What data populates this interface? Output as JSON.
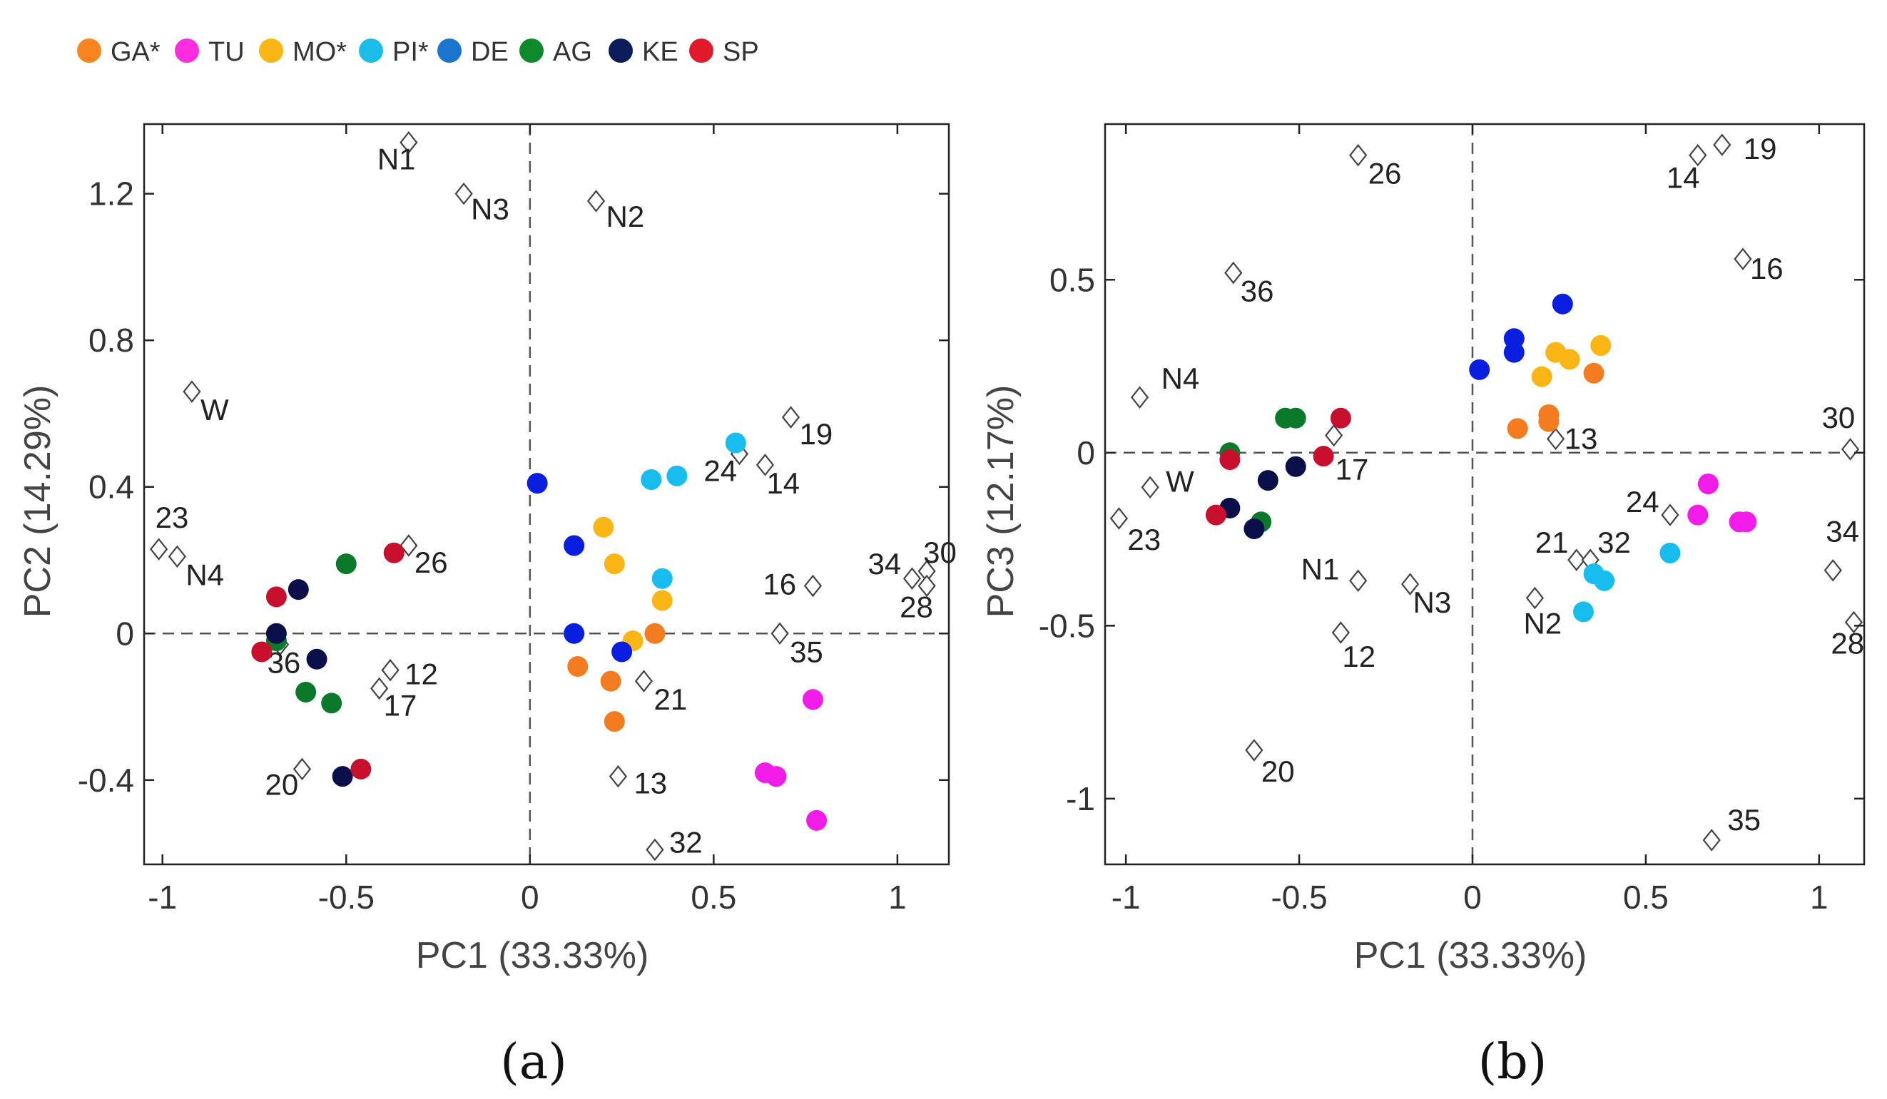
{
  "legend": {
    "groups": [
      {
        "id": "GA",
        "label": "GA*",
        "color": "#f7841f"
      },
      {
        "id": "TU",
        "label": "TU",
        "color": "#ff2ce0"
      },
      {
        "id": "MO",
        "label": "MO*",
        "color": "#fbb615"
      },
      {
        "id": "PI",
        "label": "PI*",
        "color": "#1cbce8"
      },
      {
        "id": "DE",
        "label": "DE",
        "color": "#1b74d0"
      },
      {
        "id": "AG",
        "label": "AG",
        "color": "#0e8a2c"
      },
      {
        "id": "KE",
        "label": "KE",
        "color": "#0b1c5a"
      },
      {
        "id": "SP",
        "label": "SP",
        "color": "#e01a2b"
      }
    ]
  },
  "point_colors": {
    "GA": "#f47c20",
    "TU": "#f21ce8",
    "MO": "#fbb515",
    "PI": "#18bdf0",
    "DE": "#0a1ee0",
    "AG": "#0a7a2a",
    "KE": "#0a0f4a",
    "SP": "#c8102e",
    "ref_stroke": "#444444"
  },
  "chart_data": [
    {
      "type": "scatter",
      "panel_label": "(a)",
      "xlabel": "PC1 (33.33%)",
      "ylabel": "PC2 (14.29%)",
      "xlim": [
        -1.05,
        1.14
      ],
      "ylim": [
        -0.63,
        1.39
      ],
      "xticks": [
        -1,
        -0.5,
        0,
        0.5,
        1
      ],
      "xtick_labels": [
        "-1",
        "-0.5",
        "0",
        "0.5",
        "1"
      ],
      "yticks": [
        -0.4,
        0,
        0.4,
        0.8,
        1.2
      ],
      "ytick_labels": [
        "-0.4",
        "0",
        "0.4",
        "0.8",
        "1.2"
      ],
      "series": [
        {
          "group": "GA",
          "points": [
            [
              0.13,
              -0.09
            ],
            [
              0.22,
              -0.13
            ],
            [
              0.23,
              -0.24
            ],
            [
              0.34,
              0.0
            ]
          ]
        },
        {
          "group": "TU",
          "points": [
            [
              0.64,
              -0.38
            ],
            [
              0.67,
              -0.39
            ],
            [
              0.77,
              -0.18
            ],
            [
              0.78,
              -0.51
            ]
          ]
        },
        {
          "group": "MO",
          "points": [
            [
              0.2,
              0.29
            ],
            [
              0.23,
              0.19
            ],
            [
              0.28,
              -0.02
            ],
            [
              0.36,
              0.09
            ]
          ]
        },
        {
          "group": "PI",
          "points": [
            [
              0.33,
              0.42
            ],
            [
              0.4,
              0.43
            ],
            [
              0.36,
              0.15
            ],
            [
              0.56,
              0.52
            ]
          ]
        },
        {
          "group": "DE",
          "points": [
            [
              0.02,
              0.41
            ],
            [
              0.12,
              0.24
            ],
            [
              0.12,
              0.0
            ],
            [
              0.25,
              -0.05
            ]
          ]
        },
        {
          "group": "AG",
          "points": [
            [
              -0.5,
              0.19
            ],
            [
              -0.69,
              -0.02
            ],
            [
              -0.61,
              -0.16
            ],
            [
              -0.54,
              -0.19
            ]
          ]
        },
        {
          "group": "KE",
          "points": [
            [
              -0.63,
              0.12
            ],
            [
              -0.69,
              0.0
            ],
            [
              -0.58,
              -0.07
            ],
            [
              -0.51,
              -0.39
            ]
          ]
        },
        {
          "group": "SP",
          "points": [
            [
              -0.37,
              0.22
            ],
            [
              -0.69,
              0.1
            ],
            [
              -0.73,
              -0.05
            ],
            [
              -0.46,
              -0.37
            ]
          ]
        }
      ],
      "references": [
        {
          "label": "N1",
          "x": -0.33,
          "y": 1.34,
          "dx": -44,
          "dy": 38
        },
        {
          "label": "N3",
          "x": -0.18,
          "y": 1.2,
          "dx": 10,
          "dy": 36
        },
        {
          "label": "N2",
          "x": 0.18,
          "y": 1.18,
          "dx": 14,
          "dy": 36
        },
        {
          "label": "W",
          "x": -0.92,
          "y": 0.66,
          "dx": 12,
          "dy": 40
        },
        {
          "label": "23",
          "x": -1.01,
          "y": 0.23,
          "dx": -5,
          "dy": -30
        },
        {
          "label": "N4",
          "x": -0.96,
          "y": 0.21,
          "dx": 12,
          "dy": 40
        },
        {
          "label": "26",
          "x": -0.33,
          "y": 0.24,
          "dx": 8,
          "dy": 38
        },
        {
          "label": "36",
          "x": -0.68,
          "y": -0.03,
          "dx": -18,
          "dy": 40
        },
        {
          "label": "12",
          "x": -0.38,
          "y": -0.1,
          "dx": 20,
          "dy": 20
        },
        {
          "label": "17",
          "x": -0.41,
          "y": -0.15,
          "dx": 6,
          "dy": 38
        },
        {
          "label": "20",
          "x": -0.62,
          "y": -0.37,
          "dx": -52,
          "dy": 36
        },
        {
          "label": "19",
          "x": 0.71,
          "y": 0.59,
          "dx": 12,
          "dy": 38
        },
        {
          "label": "24",
          "x": 0.57,
          "y": 0.49,
          "dx": -50,
          "dy": 38
        },
        {
          "label": "14",
          "x": 0.64,
          "y": 0.46,
          "dx": 2,
          "dy": 40
        },
        {
          "label": "16",
          "x": 0.77,
          "y": 0.13,
          "dx": -70,
          "dy": 12
        },
        {
          "label": "34",
          "x": 1.04,
          "y": 0.15,
          "dx": -62,
          "dy": -6
        },
        {
          "label": "30",
          "x": 1.08,
          "y": 0.17,
          "dx": -5,
          "dy": -12
        },
        {
          "label": "28",
          "x": 1.08,
          "y": 0.13,
          "dx": -38,
          "dy": 44
        },
        {
          "label": "35",
          "x": 0.68,
          "y": 0.0,
          "dx": 14,
          "dy": 40
        },
        {
          "label": "21",
          "x": 0.31,
          "y": -0.13,
          "dx": 14,
          "dy": 40
        },
        {
          "label": "13",
          "x": 0.24,
          "y": -0.39,
          "dx": 22,
          "dy": 24
        },
        {
          "label": "32",
          "x": 0.34,
          "y": -0.59,
          "dx": 20,
          "dy": 4
        }
      ]
    },
    {
      "type": "scatter",
      "panel_label": "(b)",
      "xlabel": "PC1 (33.33%)",
      "ylabel": "PC3 (12.17%)",
      "xlim": [
        -1.06,
        1.13
      ],
      "ylim": [
        -1.19,
        0.95
      ],
      "xticks": [
        -1,
        -0.5,
        0,
        0.5,
        1
      ],
      "xtick_labels": [
        "-1",
        "-0.5",
        "0",
        "0.5",
        "1"
      ],
      "yticks": [
        -1,
        -0.5,
        0,
        0.5
      ],
      "ytick_labels": [
        "-1",
        "-0.5",
        "0",
        "0.5"
      ],
      "series": [
        {
          "group": "GA",
          "points": [
            [
              0.13,
              0.07
            ],
            [
              0.22,
              0.09
            ],
            [
              0.22,
              0.11
            ],
            [
              0.35,
              0.23
            ]
          ]
        },
        {
          "group": "TU",
          "points": [
            [
              0.65,
              -0.18
            ],
            [
              0.68,
              -0.09
            ],
            [
              0.77,
              -0.2
            ],
            [
              0.79,
              -0.2
            ]
          ]
        },
        {
          "group": "MO",
          "points": [
            [
              0.2,
              0.22
            ],
            [
              0.24,
              0.29
            ],
            [
              0.28,
              0.27
            ],
            [
              0.37,
              0.31
            ]
          ]
        },
        {
          "group": "PI",
          "points": [
            [
              0.32,
              -0.46
            ],
            [
              0.35,
              -0.35
            ],
            [
              0.38,
              -0.37
            ],
            [
              0.57,
              -0.29
            ]
          ]
        },
        {
          "group": "DE",
          "points": [
            [
              0.02,
              0.24
            ],
            [
              0.12,
              0.29
            ],
            [
              0.12,
              0.33
            ],
            [
              0.26,
              0.43
            ]
          ]
        },
        {
          "group": "AG",
          "points": [
            [
              -0.54,
              0.1
            ],
            [
              -0.51,
              0.1
            ],
            [
              -0.7,
              0.0
            ],
            [
              -0.61,
              -0.2
            ]
          ]
        },
        {
          "group": "KE",
          "points": [
            [
              -0.59,
              -0.08
            ],
            [
              -0.51,
              -0.04
            ],
            [
              -0.7,
              -0.16
            ],
            [
              -0.63,
              -0.22
            ]
          ]
        },
        {
          "group": "SP",
          "points": [
            [
              -0.38,
              0.1
            ],
            [
              -0.43,
              -0.01
            ],
            [
              -0.7,
              -0.02
            ],
            [
              -0.74,
              -0.18
            ]
          ]
        }
      ],
      "references": [
        {
          "label": "26",
          "x": -0.33,
          "y": 0.86,
          "dx": 14,
          "dy": 40
        },
        {
          "label": "19",
          "x": 0.72,
          "y": 0.89,
          "dx": 30,
          "dy": 20
        },
        {
          "label": "14",
          "x": 0.65,
          "y": 0.86,
          "dx": -44,
          "dy": 46
        },
        {
          "label": "16",
          "x": 0.78,
          "y": 0.56,
          "dx": 10,
          "dy": 28
        },
        {
          "label": "36",
          "x": -0.69,
          "y": 0.52,
          "dx": 10,
          "dy": 40
        },
        {
          "label": "N4",
          "x": -0.96,
          "y": 0.16,
          "dx": 30,
          "dy": -12
        },
        {
          "label": "30",
          "x": 1.09,
          "y": 0.01,
          "dx": -40,
          "dy": -30
        },
        {
          "label": "13",
          "x": 0.24,
          "y": 0.04,
          "dx": 12,
          "dy": 14
        },
        {
          "label": "17",
          "x": -0.4,
          "y": 0.05,
          "dx": 2,
          "dy": 62
        },
        {
          "label": "W",
          "x": -0.93,
          "y": -0.1,
          "dx": 22,
          "dy": 6
        },
        {
          "label": "23",
          "x": -1.02,
          "y": -0.19,
          "dx": 12,
          "dy": 44
        },
        {
          "label": "24",
          "x": 0.57,
          "y": -0.18,
          "dx": -62,
          "dy": -4
        },
        {
          "label": "21",
          "x": 0.3,
          "y": -0.31,
          "dx": -58,
          "dy": -10
        },
        {
          "label": "32",
          "x": 0.34,
          "y": -0.31,
          "dx": 10,
          "dy": -10
        },
        {
          "label": "34",
          "x": 1.04,
          "y": -0.34,
          "dx": -10,
          "dy": -40
        },
        {
          "label": "N1",
          "x": -0.33,
          "y": -0.37,
          "dx": -80,
          "dy": -2
        },
        {
          "label": "N3",
          "x": -0.18,
          "y": -0.38,
          "dx": 4,
          "dy": 40
        },
        {
          "label": "N2",
          "x": 0.18,
          "y": -0.42,
          "dx": -16,
          "dy": 50
        },
        {
          "label": "12",
          "x": -0.38,
          "y": -0.52,
          "dx": 2,
          "dy": 48
        },
        {
          "label": "28",
          "x": 1.1,
          "y": -0.49,
          "dx": -32,
          "dy": 44
        },
        {
          "label": "20",
          "x": -0.63,
          "y": -0.86,
          "dx": 10,
          "dy": 44
        },
        {
          "label": "35",
          "x": 0.69,
          "y": -1.12,
          "dx": 22,
          "dy": -14
        }
      ]
    }
  ]
}
